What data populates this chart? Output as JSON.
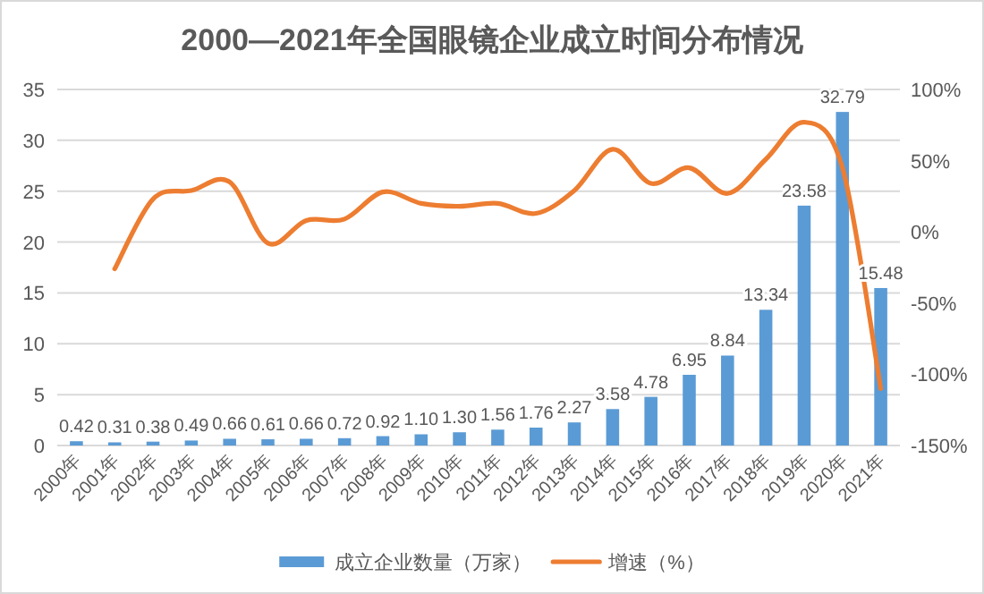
{
  "chart_data": {
    "type": "bar",
    "title": "2000—2021年全国眼镜企业成立时间分布情况",
    "categories": [
      "2000年",
      "2001年",
      "2002年",
      "2003年",
      "2004年",
      "2005年",
      "2006年",
      "2007年",
      "2008年",
      "2009年",
      "2010年",
      "2011年",
      "2012年",
      "2013年",
      "2014年",
      "2015年",
      "2016年",
      "2017年",
      "2018年",
      "2019年",
      "2020年",
      "2021年"
    ],
    "series": [
      {
        "name": "成立企业数量（万家）",
        "color": "#5b9bd5",
        "values": [
          0.42,
          0.31,
          0.38,
          0.49,
          0.66,
          0.61,
          0.66,
          0.72,
          0.92,
          1.1,
          1.3,
          1.56,
          1.76,
          2.27,
          3.58,
          4.78,
          6.95,
          8.84,
          13.34,
          23.58,
          32.79,
          15.48
        ],
        "value_labels": [
          "0.42",
          "0.31",
          "0.38",
          "0.49",
          "0.66",
          "0.61",
          "0.66",
          "0.72",
          "0.92",
          "1.10",
          "1.30",
          "1.56",
          "1.76",
          "2.27",
          "3.58",
          "4.78",
          "6.95",
          "8.84",
          "13.34",
          "23.58",
          "32.79",
          "15.48"
        ]
      },
      {
        "name": "增速（%）",
        "type": "line",
        "axis": "y2",
        "color": "#ed7d31",
        "values": [
          null,
          -26,
          23,
          29,
          35,
          -8,
          8,
          9,
          28,
          20,
          18,
          20,
          13,
          29,
          58,
          34,
          45,
          27,
          51,
          77,
          45,
          -110
        ]
      }
    ],
    "ylim": [
      0,
      35
    ],
    "yticks": [
      0,
      5,
      10,
      15,
      20,
      25,
      30,
      35
    ],
    "y2lim": [
      -150,
      100
    ],
    "y2ticks": [
      {
        "value": -150,
        "label": "-150%"
      },
      {
        "value": -100,
        "label": "-100%"
      },
      {
        "value": -50,
        "label": "-50%"
      },
      {
        "value": 0,
        "label": "0%"
      },
      {
        "value": 50,
        "label": "50%"
      },
      {
        "value": 100,
        "label": "100%"
      }
    ],
    "grid": "y",
    "legend": "bottom"
  }
}
